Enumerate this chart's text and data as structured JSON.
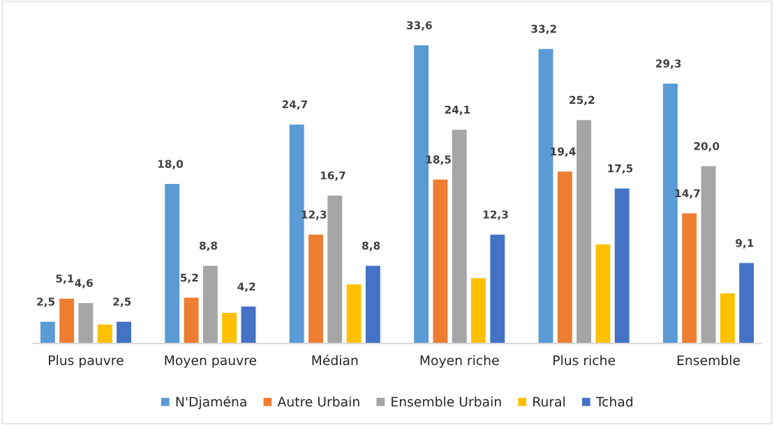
{
  "chart_data": {
    "type": "bar",
    "categories": [
      "Plus pauvre",
      "Moyen pauvre",
      "Médian",
      "Moyen riche",
      "Plus riche",
      "Ensemble"
    ],
    "series": [
      {
        "name": "N'Djaména",
        "color": "#5b9bd5",
        "values": [
          2.5,
          18.0,
          24.7,
          33.6,
          33.2,
          29.3
        ],
        "value_labels": [
          "2,5",
          "18,0",
          "24,7",
          "33,6",
          "33,2",
          "29,3"
        ]
      },
      {
        "name": "Autre Urbain",
        "color": "#ed7d31",
        "values": [
          5.1,
          5.2,
          12.3,
          18.5,
          19.4,
          14.7
        ],
        "value_labels": [
          "5,1",
          "5,2",
          "12,3",
          "18,5",
          "19,4",
          "14,7"
        ]
      },
      {
        "name": "Ensemble Urbain",
        "color": "#a5a5a5",
        "values": [
          4.6,
          8.8,
          16.7,
          24.1,
          25.2,
          20.0
        ],
        "value_labels": [
          "4,6",
          "8,8",
          "16,7",
          "24,1",
          "25,2",
          "20,0"
        ]
      },
      {
        "name": "Rural",
        "color": "#ffc000",
        "values": [
          2.2,
          3.5,
          6.7,
          7.4,
          11.2,
          5.7
        ]
      },
      {
        "name": "Tchad",
        "color": "#4472c4",
        "values": [
          2.5,
          4.2,
          8.8,
          12.3,
          17.5,
          9.1
        ],
        "value_labels": [
          "2,5",
          "4,2",
          "8,8",
          "12,3",
          "17,5",
          "9,1"
        ]
      }
    ],
    "tick_labels": "x",
    "grid": false,
    "legend": "bottom"
  }
}
